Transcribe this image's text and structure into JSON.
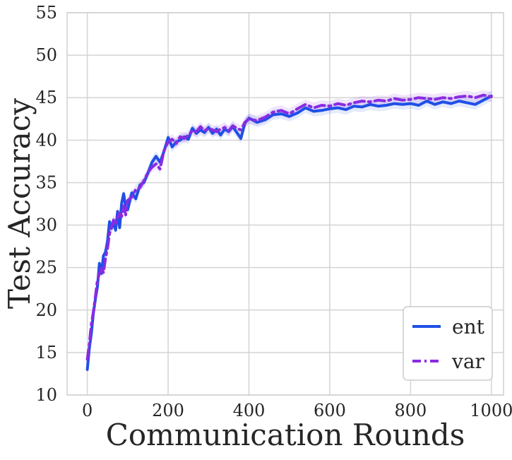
{
  "chart_data": {
    "type": "line",
    "title": "",
    "xlabel": "Communication Rounds",
    "ylabel": "Test Accuracy",
    "xlim": [
      -50,
      1030
    ],
    "ylim": [
      10,
      55
    ],
    "xticks": [
      0,
      200,
      400,
      600,
      800,
      1000
    ],
    "yticks": [
      10,
      15,
      20,
      25,
      30,
      35,
      40,
      45,
      50,
      55
    ],
    "xtick_labels": [
      "0",
      "200",
      "400",
      "600",
      "800",
      "1000"
    ],
    "ytick_labels": [
      "10",
      "15",
      "20",
      "25",
      "30",
      "35",
      "40",
      "45",
      "50",
      "55"
    ],
    "grid": true,
    "legend_position": "lower-right",
    "series": [
      {
        "name": "ent",
        "color": "#1f4fe6",
        "dash": "solid",
        "x": [
          0,
          5,
          10,
          15,
          20,
          25,
          30,
          35,
          40,
          45,
          50,
          55,
          60,
          65,
          70,
          75,
          80,
          85,
          90,
          95,
          100,
          110,
          120,
          130,
          140,
          150,
          160,
          170,
          180,
          190,
          200,
          210,
          220,
          230,
          240,
          250,
          260,
          270,
          280,
          290,
          300,
          310,
          320,
          330,
          340,
          350,
          360,
          370,
          380,
          390,
          400,
          420,
          440,
          460,
          480,
          500,
          520,
          540,
          560,
          580,
          600,
          620,
          640,
          660,
          680,
          700,
          720,
          740,
          760,
          780,
          800,
          820,
          840,
          860,
          880,
          900,
          920,
          940,
          960,
          980,
          1000
        ],
        "y": [
          13.0,
          15.5,
          17.2,
          19.6,
          21.3,
          22.7,
          25.5,
          24.3,
          26.4,
          26.8,
          28.1,
          30.4,
          29.6,
          30.3,
          29.4,
          31.6,
          29.7,
          32.6,
          33.7,
          32.1,
          31.8,
          33.8,
          33.1,
          34.7,
          35.0,
          36.1,
          37.4,
          38.1,
          37.4,
          38.7,
          40.3,
          39.2,
          39.8,
          40.0,
          40.4,
          40.1,
          41.4,
          40.8,
          41.2,
          40.9,
          41.5,
          40.8,
          41.3,
          40.6,
          41.3,
          41.0,
          41.6,
          40.9,
          40.2,
          42.0,
          42.6,
          42.1,
          42.4,
          43.0,
          43.1,
          42.8,
          43.2,
          43.8,
          43.4,
          43.5,
          43.7,
          43.8,
          43.6,
          44.0,
          43.9,
          44.2,
          44.0,
          44.1,
          44.3,
          44.2,
          44.3,
          44.1,
          44.6,
          44.2,
          44.5,
          44.3,
          44.6,
          44.4,
          44.2,
          44.7,
          45.2
        ]
      },
      {
        "name": "var",
        "color": "#8a2be2",
        "dash": "dashdot",
        "x": [
          0,
          5,
          10,
          15,
          20,
          25,
          30,
          35,
          40,
          45,
          50,
          55,
          60,
          65,
          70,
          75,
          80,
          85,
          90,
          95,
          100,
          110,
          120,
          130,
          140,
          150,
          160,
          170,
          180,
          190,
          200,
          210,
          220,
          230,
          240,
          250,
          260,
          270,
          280,
          290,
          300,
          310,
          320,
          330,
          340,
          350,
          360,
          370,
          380,
          390,
          400,
          420,
          440,
          460,
          480,
          500,
          520,
          540,
          560,
          580,
          600,
          620,
          640,
          660,
          680,
          700,
          720,
          740,
          760,
          780,
          800,
          820,
          840,
          860,
          880,
          900,
          920,
          940,
          960,
          980,
          1000
        ],
        "y": [
          14.2,
          16.0,
          18.3,
          19.8,
          21.6,
          23.5,
          24.3,
          25.0,
          24.4,
          26.1,
          27.2,
          29.0,
          29.8,
          30.6,
          30.1,
          30.9,
          31.4,
          31.0,
          32.3,
          31.2,
          32.9,
          33.3,
          34.2,
          34.4,
          35.2,
          36.2,
          36.8,
          37.2,
          36.6,
          38.8,
          39.8,
          40.1,
          39.6,
          40.4,
          40.2,
          40.6,
          41.1,
          41.0,
          41.6,
          41.1,
          41.4,
          41.2,
          41.0,
          41.3,
          41.5,
          41.1,
          41.7,
          41.4,
          41.2,
          42.1,
          42.5,
          42.3,
          42.7,
          43.3,
          43.5,
          43.1,
          43.7,
          44.2,
          43.8,
          44.1,
          44.0,
          44.3,
          44.1,
          44.4,
          44.6,
          44.5,
          44.7,
          44.6,
          44.9,
          44.7,
          44.8,
          45.0,
          44.9,
          44.8,
          45.0,
          44.9,
          45.1,
          45.2,
          45.0,
          45.3,
          45.1
        ]
      }
    ]
  }
}
